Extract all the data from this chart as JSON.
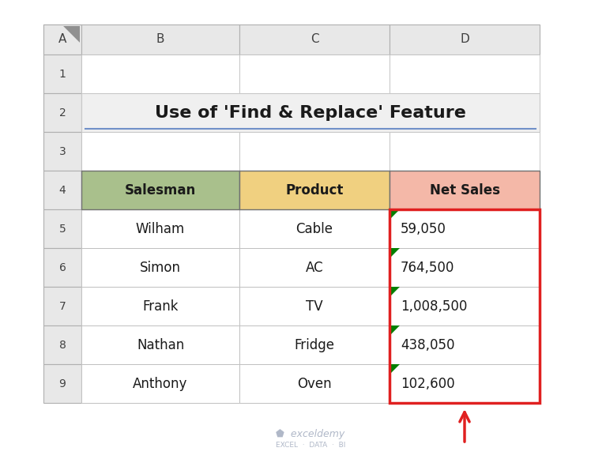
{
  "title": "Use of 'Find & Replace' Feature",
  "col_headers": [
    "Salesman",
    "Product",
    "Net Sales"
  ],
  "col_header_colors": [
    "#a9c08c",
    "#f0d080",
    "#f4b8a8"
  ],
  "rows": [
    [
      "Wilham",
      "Cable",
      "59,050"
    ],
    [
      "Simon",
      "AC",
      "764,500"
    ],
    [
      "Frank",
      "TV",
      "1,008,500"
    ],
    [
      "Nathan",
      "Fridge",
      "438,050"
    ],
    [
      "Anthony",
      "Oven",
      "102,600"
    ]
  ],
  "col_labels": [
    "A",
    "B",
    "C",
    "D"
  ],
  "bg_color": "#ffffff",
  "red_border_color": "#e02020",
  "green_triangle_color": "#008000",
  "arrow_color": "#e02020",
  "watermark_color": "#b0b8c8",
  "title_fontsize": 16,
  "header_fontsize": 12,
  "data_fontsize": 12
}
